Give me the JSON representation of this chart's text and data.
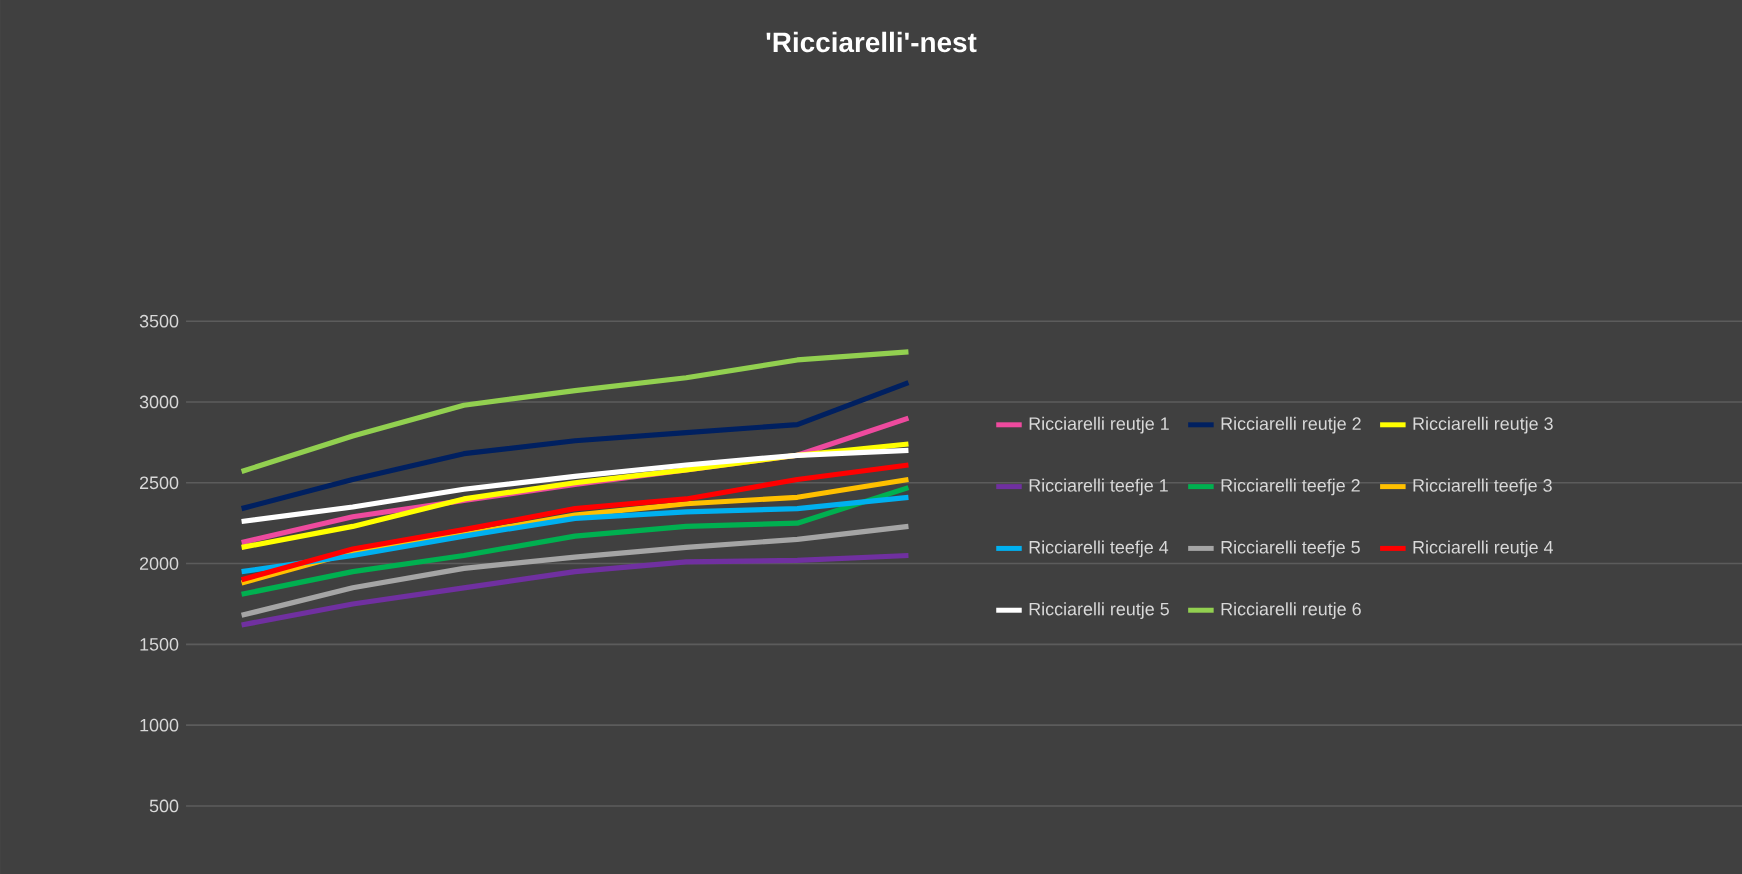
{
  "chart_data": {
    "type": "line",
    "title": "'Ricciarelli'-nest",
    "categories": [
      null,
      null,
      null,
      null,
      null,
      null,
      null,
      null,
      null,
      null,
      null,
      null,
      null,
      null
    ],
    "ylim": [
      500,
      3500
    ],
    "yticks": [
      500,
      1000,
      1500,
      2000,
      2500,
      3000,
      3500
    ],
    "grid": "y",
    "legend": "right",
    "tick_labels": "y",
    "marker": "none",
    "line_style": "solid",
    "series": [
      {
        "name": "Ricciarelli reutje 1",
        "color": "#ee4a9e",
        "values": [
          2130,
          2290,
          2390,
          2490,
          2580,
          2670,
          2900,
          null,
          null,
          null,
          null,
          null,
          null,
          null
        ]
      },
      {
        "name": "Ricciarelli reutje 2",
        "color": "#002060",
        "values": [
          2340,
          2520,
          2680,
          2760,
          2810,
          2860,
          3120,
          null,
          null,
          null,
          null,
          null,
          null,
          null
        ]
      },
      {
        "name": "Ricciarelli reutje 3",
        "color": "#ffff00",
        "values": [
          2100,
          2230,
          2400,
          2500,
          2580,
          2670,
          2740,
          null,
          null,
          null,
          null,
          null,
          null,
          null
        ]
      },
      {
        "name": "Ricciarelli teefje 1",
        "color": "#7030a0",
        "values": [
          1620,
          1750,
          1850,
          1950,
          2010,
          2020,
          2050,
          null,
          null,
          null,
          null,
          null,
          null,
          null
        ]
      },
      {
        "name": "Ricciarelli teefje 2",
        "color": "#00b050",
        "values": [
          1810,
          1950,
          2050,
          2170,
          2230,
          2250,
          2470,
          null,
          null,
          null,
          null,
          null,
          null,
          null
        ]
      },
      {
        "name": "Ricciarelli teefje 3",
        "color": "#ffc000",
        "values": [
          1880,
          2070,
          2180,
          2300,
          2370,
          2410,
          2520,
          null,
          null,
          null,
          null,
          null,
          null,
          null
        ]
      },
      {
        "name": "Ricciarelli teefje 4",
        "color": "#00b0f0",
        "values": [
          1950,
          2050,
          2170,
          2280,
          2320,
          2340,
          2410,
          null,
          null,
          null,
          null,
          null,
          null,
          null
        ]
      },
      {
        "name": "Ricciarelli teefje 5",
        "color": "#a5a5a5",
        "values": [
          1680,
          1850,
          1970,
          2040,
          2100,
          2150,
          2230,
          null,
          null,
          null,
          null,
          null,
          null,
          null
        ]
      },
      {
        "name": "Ricciarelli reutje 4",
        "color": "#ff0000",
        "values": [
          1900,
          2090,
          2210,
          2340,
          2400,
          2520,
          2610,
          null,
          null,
          null,
          null,
          null,
          null,
          null
        ]
      },
      {
        "name": "Ricciarelli reutje 5",
        "color": "#ffffff",
        "values": [
          2260,
          2350,
          2460,
          2540,
          2610,
          2670,
          2700,
          null,
          null,
          null,
          null,
          null,
          null,
          null
        ]
      },
      {
        "name": "Ricciarelli reutje 6",
        "color": "#92d050",
        "values": [
          2570,
          2790,
          2980,
          3070,
          3150,
          3260,
          3310,
          null,
          null,
          null,
          null,
          null,
          null,
          null
        ]
      }
    ]
  }
}
